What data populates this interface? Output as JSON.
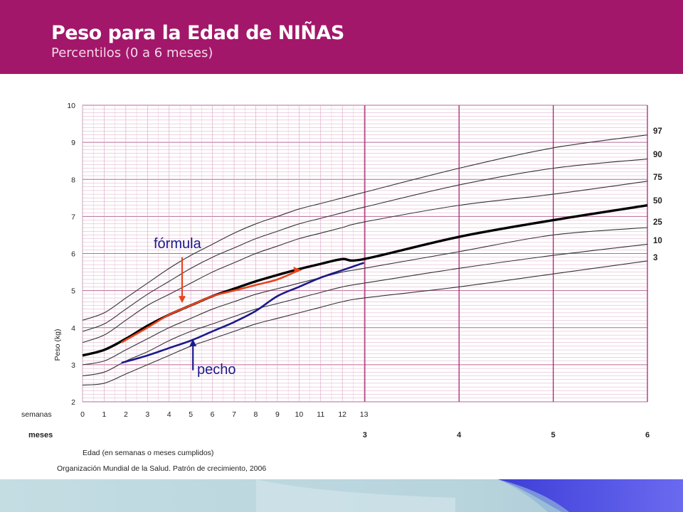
{
  "header": {
    "title": "Peso para la Edad de NIÑAS",
    "subtitle": "Percentilos (0 a 6 meses)"
  },
  "colors": {
    "header_bg": "#a3176a",
    "grid_minor": "#d8a0c0",
    "grid_major": "#a3176a",
    "formula": "#e8451c",
    "pecho": "#1a1a8c",
    "percentile_line": "#333333",
    "median_line": "#000000"
  },
  "chart_data": {
    "type": "line",
    "ylabel": "Peso (kg)",
    "xlabel": "Edad (en semanas o meses cumplidos)",
    "source": "Organización Mundial de la Salud. Patrón de crecimiento, 2006",
    "ylim": [
      2,
      10
    ],
    "xlim_weeks": [
      0,
      26.09
    ],
    "y_ticks": [
      "2",
      "3",
      "4",
      "5",
      "6",
      "7",
      "8",
      "9",
      "10"
    ],
    "x_axis_week_label": "semanas",
    "x_week_ticks": [
      "0",
      "1",
      "2",
      "3",
      "4",
      "5",
      "6",
      "7",
      "8",
      "9",
      "10",
      "11",
      "12",
      "13"
    ],
    "x_axis_month_label": "meses",
    "x_month_ticks": [
      {
        "label": "3",
        "week": 13.04
      },
      {
        "label": "4",
        "week": 17.39
      },
      {
        "label": "5",
        "week": 21.74
      },
      {
        "label": "6",
        "week": 26.09
      }
    ],
    "grid": true,
    "percentile_x_weeks": [
      0,
      1,
      2,
      3,
      4,
      5,
      6,
      7,
      8,
      9,
      10,
      11,
      12,
      13,
      17.39,
      21.74,
      26.09
    ],
    "series": [
      {
        "name": "97",
        "role": "percentile",
        "values": [
          4.2,
          4.4,
          4.8,
          5.2,
          5.6,
          5.95,
          6.25,
          6.55,
          6.8,
          7.0,
          7.2,
          7.35,
          7.5,
          7.65,
          8.3,
          8.85,
          9.2
        ]
      },
      {
        "name": "90",
        "role": "percentile",
        "values": [
          3.9,
          4.1,
          4.5,
          4.9,
          5.25,
          5.6,
          5.9,
          6.15,
          6.4,
          6.6,
          6.8,
          6.95,
          7.1,
          7.25,
          7.85,
          8.3,
          8.55
        ]
      },
      {
        "name": "75",
        "role": "percentile",
        "values": [
          3.6,
          3.8,
          4.2,
          4.6,
          4.9,
          5.2,
          5.5,
          5.75,
          6.0,
          6.2,
          6.4,
          6.55,
          6.7,
          6.85,
          7.3,
          7.6,
          7.95
        ]
      },
      {
        "name": "50",
        "role": "median",
        "values": [
          3.25,
          3.4,
          3.7,
          4.05,
          4.35,
          4.6,
          4.85,
          5.05,
          5.25,
          5.42,
          5.58,
          5.72,
          5.85,
          5.85,
          6.45,
          6.9,
          7.3
        ]
      },
      {
        "name": "25",
        "role": "percentile",
        "values": [
          3.0,
          3.1,
          3.4,
          3.7,
          4.0,
          4.25,
          4.5,
          4.7,
          4.9,
          5.05,
          5.2,
          5.35,
          5.5,
          5.6,
          6.05,
          6.5,
          6.7
        ]
      },
      {
        "name": "10",
        "role": "percentile",
        "values": [
          2.7,
          2.8,
          3.1,
          3.35,
          3.65,
          3.9,
          4.1,
          4.3,
          4.5,
          4.65,
          4.8,
          4.95,
          5.1,
          5.2,
          5.6,
          5.95,
          6.25
        ]
      },
      {
        "name": "3",
        "role": "percentile",
        "values": [
          2.45,
          2.5,
          2.75,
          3.0,
          3.25,
          3.5,
          3.7,
          3.9,
          4.1,
          4.25,
          4.4,
          4.55,
          4.7,
          4.8,
          5.1,
          5.45,
          5.8
        ]
      },
      {
        "name": "fórmula",
        "role": "annotation",
        "x": [
          1.8,
          3.0,
          4.0,
          5.0,
          6.0,
          7.0,
          8.0,
          9.0,
          10.0
        ],
        "values": [
          3.6,
          4.0,
          4.35,
          4.6,
          4.85,
          5.0,
          5.15,
          5.3,
          5.55
        ]
      },
      {
        "name": "pecho",
        "role": "annotation",
        "x": [
          1.8,
          3.0,
          4.0,
          5.0,
          6.0,
          7.0,
          8.0,
          9.0,
          10.0,
          11.0,
          12.0,
          13.0
        ],
        "values": [
          3.05,
          3.25,
          3.45,
          3.65,
          3.9,
          4.15,
          4.45,
          4.85,
          5.1,
          5.35,
          5.55,
          5.75
        ]
      }
    ],
    "annotations": [
      {
        "text": "fórmula",
        "arrow_from_week": 4.6,
        "arrow_from_kg": 5.9,
        "arrow_to_kg": 4.7
      },
      {
        "text": "pecho",
        "arrow_from_week": 5.1,
        "arrow_from_kg": 2.85,
        "arrow_to_kg": 3.65
      }
    ]
  }
}
